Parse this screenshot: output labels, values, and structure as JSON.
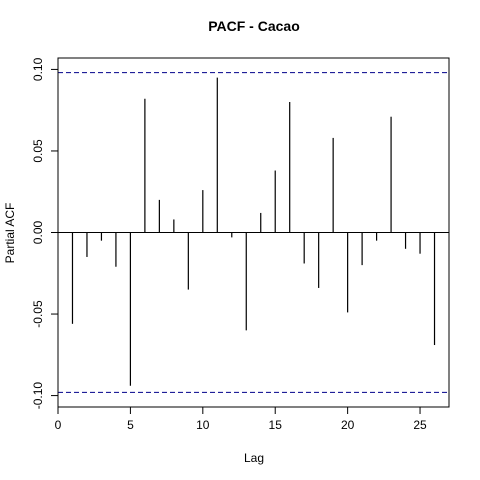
{
  "chart_data": {
    "type": "bar",
    "title": "PACF - Cacao",
    "xlabel": "Lag",
    "ylabel": "Partial ACF",
    "xlim": [
      0,
      27
    ],
    "ylim": [
      -0.107,
      0.107
    ],
    "x_ticks": [
      0,
      5,
      10,
      15,
      20,
      25
    ],
    "y_ticks": [
      -0.1,
      -0.05,
      0.0,
      0.05,
      0.1
    ],
    "y_tick_labels": [
      "-0.10",
      "-0.05",
      "0.00",
      "0.05",
      "0.10"
    ],
    "confidence_bound": 0.098,
    "x": [
      1,
      2,
      3,
      4,
      5,
      6,
      7,
      8,
      9,
      10,
      11,
      12,
      13,
      14,
      15,
      16,
      17,
      18,
      19,
      20,
      21,
      22,
      23,
      24,
      25,
      26
    ],
    "values": [
      -0.056,
      -0.015,
      -0.005,
      -0.021,
      -0.094,
      0.082,
      0.02,
      0.008,
      -0.035,
      0.026,
      0.095,
      -0.003,
      -0.06,
      0.012,
      0.038,
      0.08,
      -0.019,
      -0.034,
      0.058,
      -0.049,
      -0.02,
      -0.005,
      0.071,
      -0.01,
      -0.013,
      -0.069
    ],
    "grid": false,
    "legend": "none",
    "colors": {
      "lines": "#000000",
      "bounds": "#00008B",
      "background": "#ffffff"
    }
  }
}
